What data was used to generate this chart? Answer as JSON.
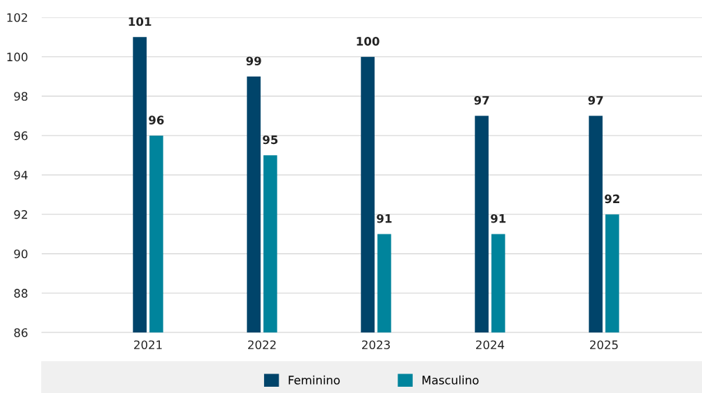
{
  "chart_data": {
    "type": "bar",
    "categories": [
      "2021",
      "2022",
      "2023",
      "2024",
      "2025"
    ],
    "series": [
      {
        "name": "Feminino",
        "color": "#00446a",
        "values": [
          101,
          99,
          100,
          97,
          97
        ]
      },
      {
        "name": "Masculino",
        "color": "#00849c",
        "values": [
          96,
          95,
          91,
          91,
          92
        ]
      }
    ],
    "ylim": [
      86,
      102
    ],
    "yticks": [
      86,
      88,
      90,
      92,
      94,
      96,
      98,
      100,
      102
    ],
    "grid": "y",
    "legend": "bottom",
    "data_labels": true
  }
}
